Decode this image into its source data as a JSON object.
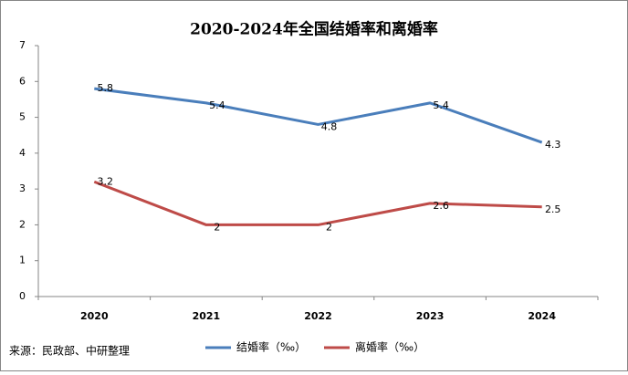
{
  "chart_data": {
    "type": "line",
    "title": "2020-2024年全国结婚率和离婚率",
    "source": "来源：民政部、中研整理",
    "categories": [
      "2020",
      "2021",
      "2022",
      "2023",
      "2024"
    ],
    "series": [
      {
        "name": "结婚率（‰）",
        "color": "#4a7ebb",
        "values": [
          5.8,
          5.4,
          4.8,
          5.4,
          4.3
        ]
      },
      {
        "name": "离婚率（‰）",
        "color": "#be4b48",
        "values": [
          3.2,
          2,
          2,
          2.6,
          2.5
        ]
      }
    ],
    "ylim": [
      0,
      7
    ],
    "yticks": [
      0,
      1,
      2,
      3,
      4,
      5,
      6,
      7
    ],
    "grid": false,
    "legend": "bottom"
  }
}
